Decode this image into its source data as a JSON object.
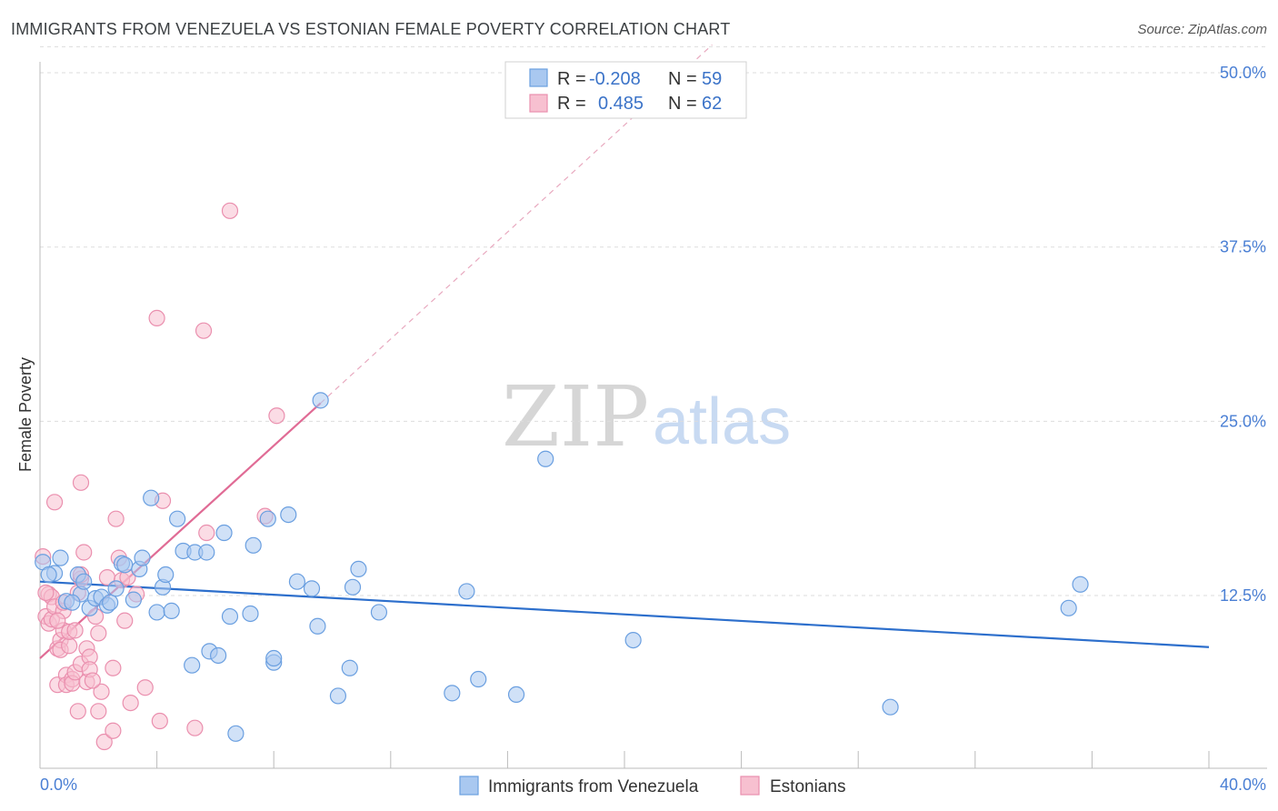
{
  "header": {
    "title": "IMMIGRANTS FROM VENEZUELA VS ESTONIAN FEMALE POVERTY CORRELATION CHART",
    "source": "Source: ZipAtlas.com"
  },
  "watermark": {
    "zip": "ZIP",
    "atlas": "atlas"
  },
  "colors": {
    "blue_fill": "#a9c8f0",
    "blue_stroke": "#6a9fe0",
    "blue_line": "#2d6fcc",
    "pink_fill": "#f7c0d0",
    "pink_stroke": "#ea8fae",
    "pink_line": "#e06b95",
    "tick_text": "#4a7fd4",
    "grid": "#dddddd"
  },
  "legend": {
    "rows": [
      {
        "r_label": "R =",
        "r_value": "-0.208",
        "n_label": "N =",
        "n_value": "59",
        "color": "blue"
      },
      {
        "r_label": "R =",
        "r_value": " 0.485",
        "n_label": "N =",
        "n_value": "62",
        "color": "pink"
      }
    ]
  },
  "bottom_legend": {
    "items": [
      {
        "label": "Immigrants from Venezuela",
        "color": "blue"
      },
      {
        "label": "Estonians",
        "color": "pink"
      }
    ]
  },
  "chart_data": {
    "type": "scatter",
    "title": "IMMIGRANTS FROM VENEZUELA VS ESTONIAN FEMALE POVERTY CORRELATION CHART",
    "xlabel": "",
    "ylabel": "Female Poverty",
    "xlim": [
      0,
      40
    ],
    "ylim": [
      0,
      52
    ],
    "x_tick_labels": {
      "left": "0.0%",
      "right": "40.0%"
    },
    "y_ticks": [
      {
        "value": 12.5,
        "label": "12.5%"
      },
      {
        "value": 25.0,
        "label": "25.0%"
      },
      {
        "value": 37.5,
        "label": "37.5%"
      },
      {
        "value": 50.0,
        "label": "50.0%"
      }
    ],
    "series": [
      {
        "name": "Immigrants from Venezuela",
        "color": "blue",
        "trend": {
          "x": [
            0,
            40
          ],
          "y": [
            13.5,
            8.8
          ]
        },
        "points": [
          {
            "x": 0.1,
            "y": 14.9
          },
          {
            "x": 0.5,
            "y": 14.1
          },
          {
            "x": 0.7,
            "y": 15.2
          },
          {
            "x": 0.9,
            "y": 12.1
          },
          {
            "x": 1.3,
            "y": 14.0
          },
          {
            "x": 1.4,
            "y": 12.6
          },
          {
            "x": 1.5,
            "y": 13.5
          },
          {
            "x": 1.7,
            "y": 11.6
          },
          {
            "x": 1.9,
            "y": 12.3
          },
          {
            "x": 2.1,
            "y": 12.4
          },
          {
            "x": 2.3,
            "y": 11.8
          },
          {
            "x": 2.4,
            "y": 12.0
          },
          {
            "x": 2.6,
            "y": 13.0
          },
          {
            "x": 2.8,
            "y": 14.8
          },
          {
            "x": 2.9,
            "y": 14.7
          },
          {
            "x": 3.2,
            "y": 12.2
          },
          {
            "x": 3.4,
            "y": 14.4
          },
          {
            "x": 3.5,
            "y": 15.2
          },
          {
            "x": 3.8,
            "y": 19.5
          },
          {
            "x": 4.0,
            "y": 11.3
          },
          {
            "x": 4.2,
            "y": 13.1
          },
          {
            "x": 4.3,
            "y": 14.0
          },
          {
            "x": 4.5,
            "y": 11.4
          },
          {
            "x": 4.7,
            "y": 18.0
          },
          {
            "x": 4.9,
            "y": 15.7
          },
          {
            "x": 5.2,
            "y": 7.5
          },
          {
            "x": 5.3,
            "y": 15.6
          },
          {
            "x": 5.7,
            "y": 15.6
          },
          {
            "x": 5.8,
            "y": 8.5
          },
          {
            "x": 6.1,
            "y": 8.2
          },
          {
            "x": 6.3,
            "y": 17.0
          },
          {
            "x": 6.5,
            "y": 11.0
          },
          {
            "x": 6.7,
            "y": 2.6
          },
          {
            "x": 7.2,
            "y": 11.2
          },
          {
            "x": 7.3,
            "y": 16.1
          },
          {
            "x": 7.8,
            "y": 18.0
          },
          {
            "x": 8.0,
            "y": 7.7
          },
          {
            "x": 8.0,
            "y": 8.0
          },
          {
            "x": 8.5,
            "y": 18.3
          },
          {
            "x": 8.8,
            "y": 13.5
          },
          {
            "x": 9.3,
            "y": 13.0
          },
          {
            "x": 9.5,
            "y": 10.3
          },
          {
            "x": 9.6,
            "y": 26.5
          },
          {
            "x": 10.2,
            "y": 5.3
          },
          {
            "x": 10.6,
            "y": 7.3
          },
          {
            "x": 10.7,
            "y": 13.1
          },
          {
            "x": 10.9,
            "y": 14.4
          },
          {
            "x": 11.6,
            "y": 11.3
          },
          {
            "x": 14.1,
            "y": 5.5
          },
          {
            "x": 14.6,
            "y": 12.8
          },
          {
            "x": 15.0,
            "y": 6.5
          },
          {
            "x": 16.3,
            "y": 5.4
          },
          {
            "x": 17.3,
            "y": 22.3
          },
          {
            "x": 20.3,
            "y": 9.3
          },
          {
            "x": 29.1,
            "y": 4.5
          },
          {
            "x": 35.2,
            "y": 11.6
          },
          {
            "x": 35.6,
            "y": 13.3
          },
          {
            "x": 0.3,
            "y": 14.0
          },
          {
            "x": 1.1,
            "y": 12.0
          }
        ]
      },
      {
        "name": "Estonians",
        "color": "pink",
        "trend": {
          "x": [
            0,
            9.6
          ],
          "y": [
            8.0,
            26.3
          ]
        },
        "trend_dashed": {
          "x": [
            9.6,
            23.0
          ],
          "y": [
            26.3,
            52.0
          ]
        },
        "points": [
          {
            "x": 0.1,
            "y": 15.3
          },
          {
            "x": 0.2,
            "y": 11.0
          },
          {
            "x": 0.3,
            "y": 10.5
          },
          {
            "x": 0.3,
            "y": 12.6
          },
          {
            "x": 0.4,
            "y": 12.4
          },
          {
            "x": 0.4,
            "y": 10.8
          },
          {
            "x": 0.5,
            "y": 11.7
          },
          {
            "x": 0.5,
            "y": 19.2
          },
          {
            "x": 0.6,
            "y": 8.7
          },
          {
            "x": 0.6,
            "y": 6.1
          },
          {
            "x": 0.7,
            "y": 9.3
          },
          {
            "x": 0.7,
            "y": 8.6
          },
          {
            "x": 0.8,
            "y": 11.4
          },
          {
            "x": 0.8,
            "y": 10.0
          },
          {
            "x": 0.8,
            "y": 12.0
          },
          {
            "x": 0.9,
            "y": 6.8
          },
          {
            "x": 0.9,
            "y": 6.1
          },
          {
            "x": 1.0,
            "y": 8.9
          },
          {
            "x": 1.0,
            "y": 9.9
          },
          {
            "x": 1.1,
            "y": 6.5
          },
          {
            "x": 1.1,
            "y": 6.2
          },
          {
            "x": 1.2,
            "y": 7.0
          },
          {
            "x": 1.2,
            "y": 10.0
          },
          {
            "x": 1.3,
            "y": 12.7
          },
          {
            "x": 1.3,
            "y": 4.2
          },
          {
            "x": 1.4,
            "y": 13.7
          },
          {
            "x": 1.4,
            "y": 7.6
          },
          {
            "x": 1.4,
            "y": 14.0
          },
          {
            "x": 1.4,
            "y": 20.6
          },
          {
            "x": 1.5,
            "y": 15.6
          },
          {
            "x": 1.6,
            "y": 6.3
          },
          {
            "x": 1.6,
            "y": 8.7
          },
          {
            "x": 1.7,
            "y": 8.1
          },
          {
            "x": 1.7,
            "y": 7.2
          },
          {
            "x": 1.9,
            "y": 11.0
          },
          {
            "x": 2.0,
            "y": 9.8
          },
          {
            "x": 2.0,
            "y": 4.2
          },
          {
            "x": 2.1,
            "y": 5.6
          },
          {
            "x": 2.2,
            "y": 2.0
          },
          {
            "x": 2.3,
            "y": 13.8
          },
          {
            "x": 2.5,
            "y": 7.3
          },
          {
            "x": 2.5,
            "y": 2.8
          },
          {
            "x": 2.6,
            "y": 18.0
          },
          {
            "x": 2.7,
            "y": 15.2
          },
          {
            "x": 2.8,
            "y": 13.6
          },
          {
            "x": 2.9,
            "y": 10.7
          },
          {
            "x": 3.0,
            "y": 13.8
          },
          {
            "x": 3.1,
            "y": 4.8
          },
          {
            "x": 3.6,
            "y": 5.9
          },
          {
            "x": 4.0,
            "y": 32.4
          },
          {
            "x": 4.1,
            "y": 3.5
          },
          {
            "x": 4.2,
            "y": 19.3
          },
          {
            "x": 5.3,
            "y": 3.0
          },
          {
            "x": 5.6,
            "y": 31.5
          },
          {
            "x": 5.7,
            "y": 17.0
          },
          {
            "x": 6.5,
            "y": 40.1
          },
          {
            "x": 7.7,
            "y": 18.2
          },
          {
            "x": 8.1,
            "y": 25.4
          },
          {
            "x": 0.2,
            "y": 12.7
          },
          {
            "x": 0.6,
            "y": 10.7
          },
          {
            "x": 1.8,
            "y": 6.4
          },
          {
            "x": 3.3,
            "y": 12.6
          }
        ]
      }
    ]
  }
}
